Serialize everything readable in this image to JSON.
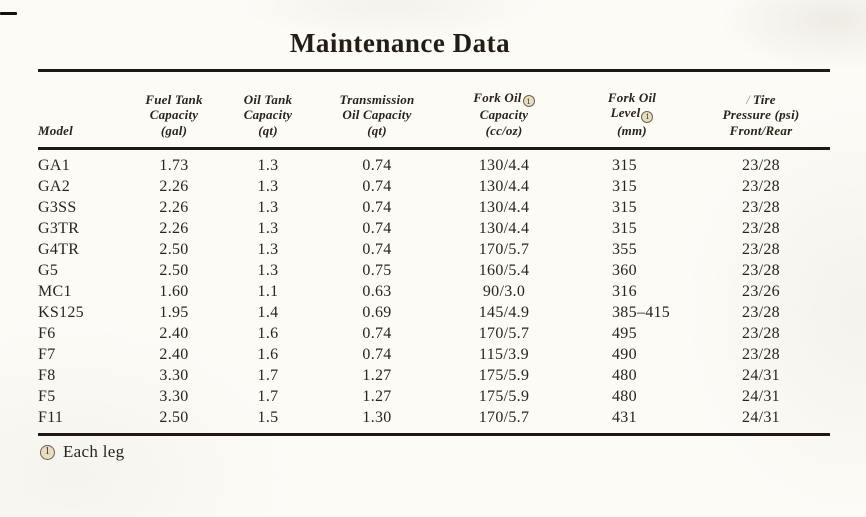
{
  "page": {
    "title": "Maintenance Data",
    "footnote": {
      "marker": "1",
      "text": "Each leg"
    },
    "artifacts": {
      "tire_slash": "/"
    }
  },
  "colors": {
    "paper": "#fcfbf6",
    "ink": "#2a231b",
    "rule": "#1f1911",
    "marker_fill": "#e8ddc1"
  },
  "table": {
    "columns": {
      "model": {
        "line1": "Model"
      },
      "fuel": {
        "line1": "Fuel Tank",
        "line2": "Capacity",
        "line3": "(gal)"
      },
      "oil": {
        "line1": "Oil Tank",
        "line2": "Capacity",
        "line3": "(qt)"
      },
      "transmission": {
        "line1": "Transmission",
        "line2": "Oil Capacity",
        "line3": "(qt)"
      },
      "fork_oil_capacity": {
        "line1": "Fork Oil",
        "line2": "Capacity",
        "line3": "(cc/oz)"
      },
      "fork_oil_level": {
        "line1": "Fork Oil",
        "line2": "Level",
        "line3": "(mm)"
      },
      "tire_pressure": {
        "line1": "Tire",
        "line2": "Pressure (psi)",
        "line3": "Front/Rear"
      }
    },
    "rows": [
      {
        "model": "GA1",
        "fuel": "1.73",
        "oil": "1.3",
        "transmission": "0.74",
        "fork_oil_capacity": "130/4.4",
        "fork_oil_level": "315",
        "tire_pressure": "23/28"
      },
      {
        "model": "GA2",
        "fuel": "2.26",
        "oil": "1.3",
        "transmission": "0.74",
        "fork_oil_capacity": "130/4.4",
        "fork_oil_level": "315",
        "tire_pressure": "23/28"
      },
      {
        "model": "G3SS",
        "fuel": "2.26",
        "oil": "1.3",
        "transmission": "0.74",
        "fork_oil_capacity": "130/4.4",
        "fork_oil_level": "315",
        "tire_pressure": "23/28"
      },
      {
        "model": "G3TR",
        "fuel": "2.26",
        "oil": "1.3",
        "transmission": "0.74",
        "fork_oil_capacity": "130/4.4",
        "fork_oil_level": "315",
        "tire_pressure": "23/28"
      },
      {
        "model": "G4TR",
        "fuel": "2.50",
        "oil": "1.3",
        "transmission": "0.74",
        "fork_oil_capacity": "170/5.7",
        "fork_oil_level": "355",
        "tire_pressure": "23/28"
      },
      {
        "model": "G5",
        "fuel": "2.50",
        "oil": "1.3",
        "transmission": "0.75",
        "fork_oil_capacity": "160/5.4",
        "fork_oil_level": "360",
        "tire_pressure": "23/28"
      },
      {
        "model": "MC1",
        "fuel": "1.60",
        "oil": "1.1",
        "transmission": "0.63",
        "fork_oil_capacity": "90/3.0",
        "fork_oil_level": "316",
        "tire_pressure": "23/26"
      },
      {
        "model": "KS125",
        "fuel": "1.95",
        "oil": "1.4",
        "transmission": "0.69",
        "fork_oil_capacity": "145/4.9",
        "fork_oil_level": "385–415",
        "tire_pressure": "23/28"
      },
      {
        "model": "F6",
        "fuel": "2.40",
        "oil": "1.6",
        "transmission": "0.74",
        "fork_oil_capacity": "170/5.7",
        "fork_oil_level": "495",
        "tire_pressure": "23/28"
      },
      {
        "model": "F7",
        "fuel": "2.40",
        "oil": "1.6",
        "transmission": "0.74",
        "fork_oil_capacity": "115/3.9",
        "fork_oil_level": "490",
        "tire_pressure": "23/28"
      },
      {
        "model": "F8",
        "fuel": "3.30",
        "oil": "1.7",
        "transmission": "1.27",
        "fork_oil_capacity": "175/5.9",
        "fork_oil_level": "480",
        "tire_pressure": "24/31"
      },
      {
        "model": "F5",
        "fuel": "3.30",
        "oil": "1.7",
        "transmission": "1.27",
        "fork_oil_capacity": "175/5.9",
        "fork_oil_level": "480",
        "tire_pressure": "24/31"
      },
      {
        "model": "F11",
        "fuel": "2.50",
        "oil": "1.5",
        "transmission": "1.30",
        "fork_oil_capacity": "170/5.7",
        "fork_oil_level": "431",
        "tire_pressure": "24/31"
      }
    ]
  }
}
